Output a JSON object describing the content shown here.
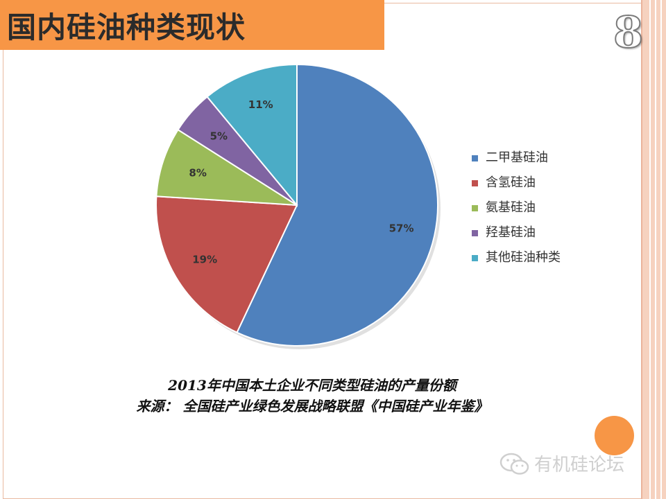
{
  "slide": {
    "title": "国内硅油种类现状",
    "number": "8",
    "caption_line1": "2013年中国本土企业不同类型硅油的产量份额",
    "caption_line2": "来源： 全国硅产业绿色发展战略联盟《中国硅产业年鉴》",
    "watermark": "有机硅论坛",
    "accent_color": "#f79646"
  },
  "chart_data": {
    "type": "pie",
    "title": "",
    "categories": [
      "二甲基硅油",
      "含氢硅油",
      "氨基硅油",
      "羟基硅油",
      "其他硅油种类"
    ],
    "values": [
      57,
      19,
      8,
      5,
      11
    ],
    "labels": [
      "57%",
      "19%",
      "8%",
      "5%",
      "11%"
    ],
    "colors": [
      "#4f81bd",
      "#c0504d",
      "#9bbb59",
      "#8064a2",
      "#4bacc6"
    ],
    "legend_position": "right",
    "start_angle_deg": 0,
    "direction": "clockwise"
  }
}
